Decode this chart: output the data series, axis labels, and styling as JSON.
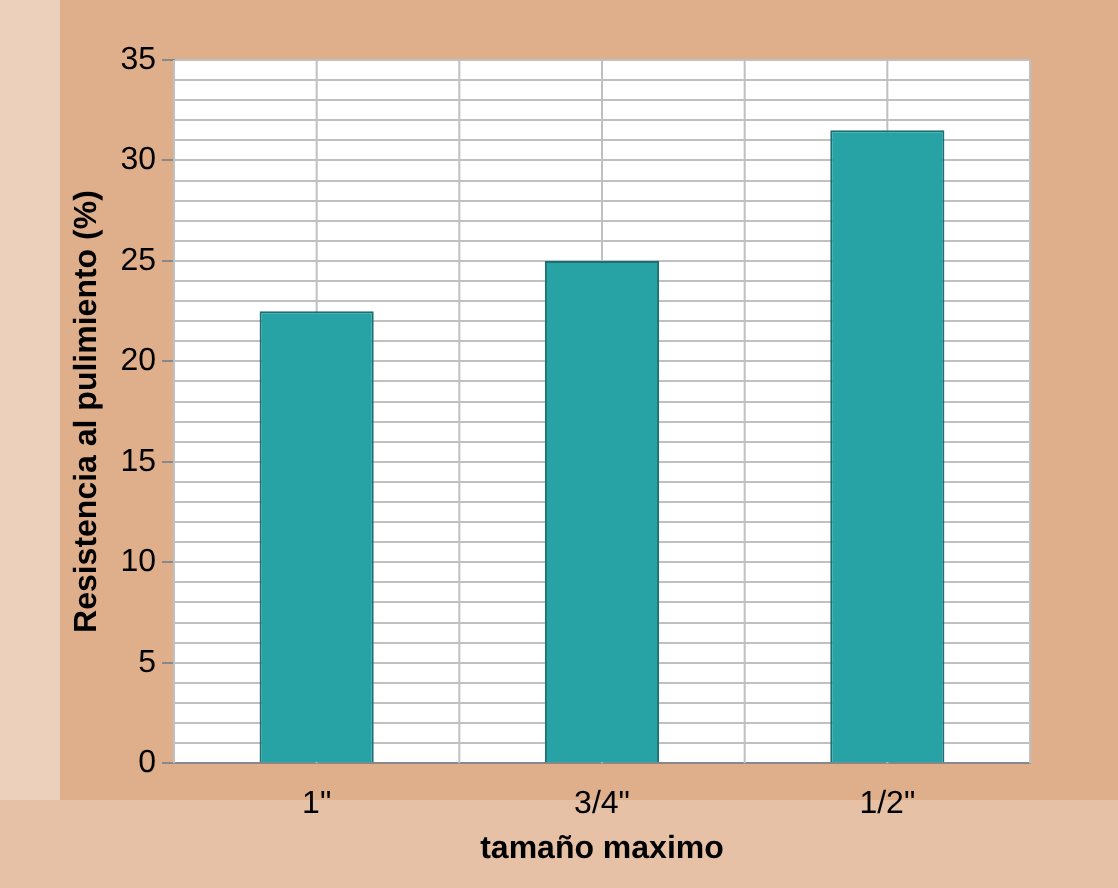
{
  "chart_data": {
    "type": "bar",
    "xlabel": "tamaño maximo",
    "ylabel": "Resistencia al pulimiento (%)",
    "categories": [
      "1\"",
      "3/4\"",
      "1/2\""
    ],
    "values": [
      22.5,
      25,
      31.5
    ],
    "color": "#27a3a6",
    "ylim": [
      0,
      35
    ],
    "yticks": [
      0,
      {
        "value": 1,
        "label": null
      },
      {
        "value": 2,
        "label": null
      },
      {
        "value": 3,
        "label": null
      },
      {
        "value": 4,
        "label": null
      },
      5,
      {
        "value": 6,
        "label": null
      },
      {
        "value": 7,
        "label": null
      },
      {
        "value": 8,
        "label": null
      },
      {
        "value": 9,
        "label": null
      },
      10,
      {
        "value": 11,
        "label": null
      },
      {
        "value": 12,
        "label": null
      },
      {
        "value": 13,
        "label": null
      },
      {
        "value": 14,
        "label": null
      },
      15,
      {
        "value": 16,
        "label": null
      },
      {
        "value": 17,
        "label": null
      },
      {
        "value": 18,
        "label": null
      },
      {
        "value": 19,
        "label": null
      },
      20,
      {
        "value": 21,
        "label": null
      },
      {
        "value": 22,
        "label": null
      },
      {
        "value": 23,
        "label": null
      },
      {
        "value": 24,
        "label": null
      },
      25,
      {
        "value": 26,
        "label": null
      },
      {
        "value": 27,
        "label": null
      },
      {
        "value": 28,
        "label": null
      },
      {
        "value": 29,
        "label": null
      },
      30,
      {
        "value": 31,
        "label": null
      },
      {
        "value": 32,
        "label": null
      },
      {
        "value": 33,
        "label": null
      },
      {
        "value": 34,
        "label": null
      },
      35
    ],
    "grid": true,
    "legend": false
  }
}
